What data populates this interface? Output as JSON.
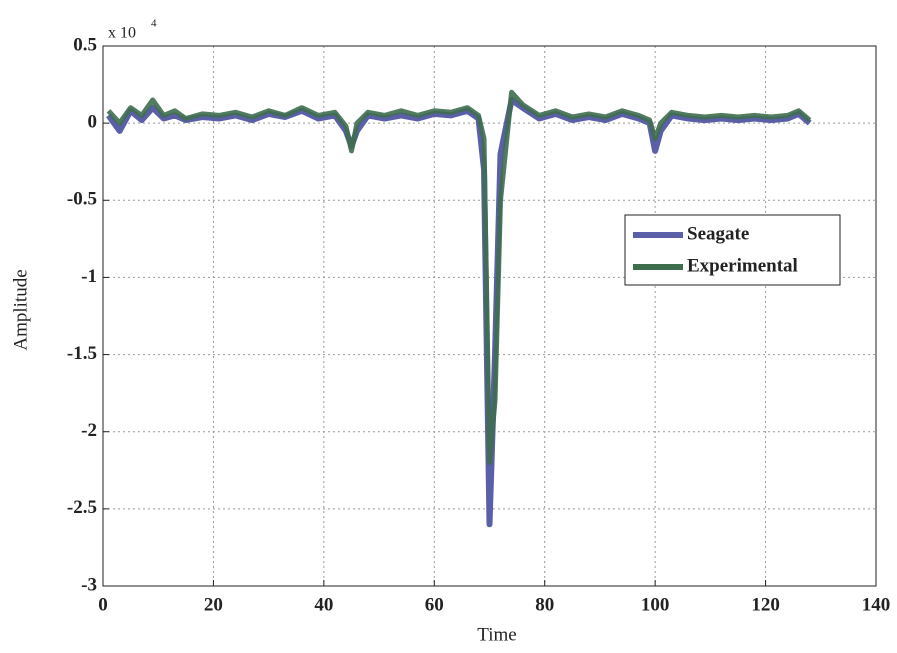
{
  "chart_data": {
    "type": "line",
    "x_label": "Time",
    "y_label": "Amplitude",
    "y_multiplier": "x 10",
    "y_multiplier_exponent": "4",
    "x": [
      1,
      3,
      5,
      7,
      9,
      11,
      13,
      15,
      18,
      21,
      24,
      27,
      30,
      33,
      36,
      39,
      42,
      44,
      45,
      46,
      48,
      51,
      54,
      57,
      60,
      63,
      66,
      68,
      69,
      70,
      71,
      72,
      74,
      76,
      79,
      82,
      85,
      88,
      91,
      94,
      97,
      99,
      100,
      101,
      103,
      106,
      109,
      112,
      115,
      118,
      121,
      124,
      126,
      128
    ],
    "series": [
      {
        "name": "Seagate",
        "color": "#5a5fa8",
        "values": [
          0.05,
          -0.05,
          0.08,
          0.02,
          0.1,
          0.03,
          0.05,
          0.02,
          0.04,
          0.03,
          0.05,
          0.02,
          0.06,
          0.04,
          0.08,
          0.03,
          0.05,
          -0.05,
          -0.15,
          -0.05,
          0.05,
          0.03,
          0.05,
          0.03,
          0.06,
          0.05,
          0.08,
          0.03,
          -0.3,
          -2.6,
          -1.5,
          -0.2,
          0.15,
          0.1,
          0.03,
          0.06,
          0.02,
          0.04,
          0.02,
          0.06,
          0.03,
          0.0,
          -0.18,
          -0.05,
          0.05,
          0.03,
          0.02,
          0.03,
          0.02,
          0.03,
          0.02,
          0.03,
          0.06,
          0.0
        ]
      },
      {
        "name": "Experimental",
        "color": "#3f6e4f",
        "values": [
          0.08,
          0.0,
          0.1,
          0.05,
          0.15,
          0.05,
          0.08,
          0.03,
          0.06,
          0.05,
          0.07,
          0.04,
          0.08,
          0.05,
          0.1,
          0.05,
          0.07,
          -0.02,
          -0.18,
          0.0,
          0.07,
          0.05,
          0.08,
          0.05,
          0.08,
          0.07,
          0.1,
          0.05,
          -0.1,
          -2.2,
          -1.8,
          -0.5,
          0.2,
          0.12,
          0.05,
          0.08,
          0.04,
          0.06,
          0.04,
          0.08,
          0.05,
          0.02,
          -0.1,
          0.0,
          0.07,
          0.05,
          0.04,
          0.05,
          0.04,
          0.05,
          0.04,
          0.05,
          0.08,
          0.02
        ]
      }
    ],
    "xlim": [
      0,
      140
    ],
    "xticks": [
      0,
      20,
      40,
      60,
      80,
      100,
      120,
      140
    ],
    "ylim": [
      -3,
      0.5
    ],
    "yticks": [
      0.5,
      0,
      -0.5,
      -1,
      -1.5,
      -2,
      -2.5,
      -3
    ],
    "grid": true,
    "legend_position": "right"
  }
}
